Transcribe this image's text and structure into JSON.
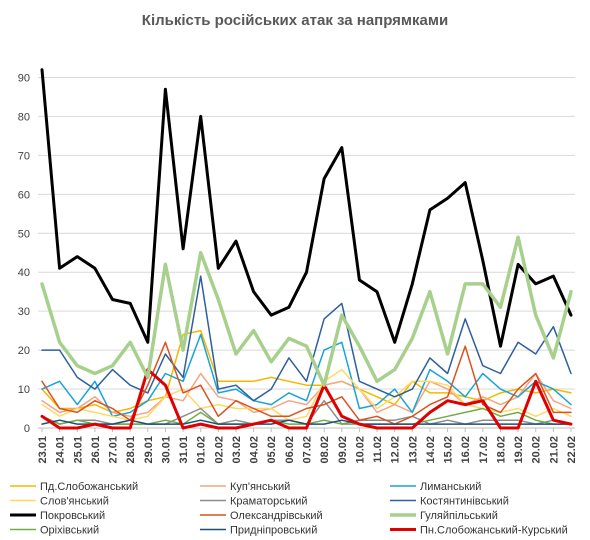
{
  "chart_data": {
    "type": "line",
    "title": "Кількість російських атак за напрямками",
    "ylim": [
      0,
      95
    ],
    "yticks": [
      0,
      10,
      20,
      30,
      40,
      50,
      60,
      70,
      80,
      90
    ],
    "grid": true,
    "legend": "bottom",
    "categories": [
      "23.01",
      "24.01",
      "25.01",
      "26.01",
      "27.01",
      "28.01",
      "29.01",
      "30.01",
      "31.01",
      "01.02",
      "02.02",
      "03.02",
      "04.02",
      "05.02",
      "06.02",
      "07.02",
      "08.02",
      "09.02",
      "10.02",
      "11.02",
      "12.02",
      "13.02",
      "14.02",
      "15.02",
      "16.02",
      "17.02",
      "18.02",
      "19.02",
      "20.02",
      "21.02",
      "22.02"
    ],
    "series": [
      {
        "name": "Пд.Слобожанський",
        "color": "#f5b800",
        "width": 1.5,
        "values": [
          10,
          5,
          5,
          6,
          4,
          5,
          7,
          8,
          24,
          25,
          12,
          12,
          12,
          13,
          12,
          11,
          11,
          12,
          10,
          8,
          6,
          12,
          9,
          9,
          8,
          7,
          9,
          10,
          9,
          10,
          9
        ]
      },
      {
        "name": "Куп'янський",
        "color": "#f4a582",
        "width": 1.5,
        "values": [
          7,
          4,
          5,
          8,
          4,
          3,
          4,
          8,
          7,
          14,
          8,
          7,
          4,
          5,
          7,
          6,
          11,
          12,
          10,
          4,
          6,
          4,
          12,
          10,
          6,
          8,
          6,
          8,
          14,
          7,
          5
        ]
      },
      {
        "name": "Лиманський",
        "color": "#1aa3d9",
        "width": 1.5,
        "values": [
          10,
          12,
          6,
          12,
          3,
          4,
          7,
          14,
          12,
          24,
          9,
          10,
          7,
          6,
          9,
          7,
          20,
          22,
          5,
          6,
          10,
          4,
          15,
          12,
          8,
          14,
          10,
          8,
          12,
          10,
          6
        ]
      },
      {
        "name": "Слов'янський",
        "color": "#ffd966",
        "width": 1.5,
        "values": [
          6,
          3,
          5,
          4,
          3,
          2,
          3,
          8,
          10,
          5,
          6,
          5,
          5,
          5,
          2,
          3,
          12,
          15,
          10,
          5,
          8,
          12,
          12,
          11,
          6,
          5,
          4,
          5,
          3,
          5,
          3
        ]
      },
      {
        "name": "Краматорський",
        "color": "#8c8c8c",
        "width": 1.5,
        "values": [
          3,
          1,
          2,
          2,
          1,
          1,
          1,
          1,
          3,
          5,
          1,
          2,
          1,
          2,
          2,
          1,
          7,
          1,
          2,
          2,
          2,
          3,
          1,
          2,
          1,
          2,
          2,
          2,
          1,
          2,
          1
        ]
      },
      {
        "name": "Костянтинівський",
        "color": "#2e5f9e",
        "width": 1.5,
        "values": [
          20,
          20,
          13,
          10,
          15,
          11,
          9,
          19,
          13,
          39,
          10,
          11,
          7,
          10,
          18,
          12,
          28,
          32,
          12,
          10,
          8,
          10,
          18,
          14,
          28,
          16,
          14,
          22,
          19,
          26,
          14
        ]
      },
      {
        "name": "Покровський",
        "color": "#000000",
        "width": 3,
        "values": [
          92,
          41,
          44,
          41,
          33,
          32,
          22,
          87,
          46,
          80,
          41,
          48,
          35,
          29,
          31,
          40,
          64,
          72,
          38,
          35,
          22,
          37,
          56,
          59,
          63,
          43,
          21,
          42,
          37,
          39,
          29
        ]
      },
      {
        "name": "Олександрівський",
        "color": "#d9531e",
        "width": 1.5,
        "values": [
          12,
          5,
          4,
          7,
          5,
          2,
          11,
          22,
          9,
          11,
          3,
          7,
          5,
          3,
          3,
          5,
          6,
          8,
          2,
          3,
          1,
          3,
          6,
          8,
          21,
          6,
          4,
          10,
          14,
          4,
          4
        ]
      },
      {
        "name": "Гуляйпільський",
        "color": "#a8d08d",
        "width": 3.5,
        "values": [
          37,
          22,
          16,
          14,
          16,
          22,
          13,
          42,
          20,
          45,
          33,
          19,
          25,
          17,
          23,
          21,
          11,
          29,
          21,
          12,
          15,
          23,
          35,
          19,
          37,
          37,
          31,
          49,
          29,
          18,
          35
        ]
      },
      {
        "name": "Оріхівський",
        "color": "#70ad47",
        "width": 1.5,
        "values": [
          3,
          1,
          2,
          1,
          1,
          1,
          1,
          2,
          1,
          4,
          1,
          1,
          1,
          2,
          1,
          1,
          2,
          1,
          1,
          1,
          1,
          1,
          2,
          3,
          4,
          5,
          3,
          4,
          2,
          1,
          1
        ]
      },
      {
        "name": "Придніпровський",
        "color": "#1f4e79",
        "width": 1.5,
        "values": [
          1,
          2,
          1,
          1,
          1,
          2,
          1,
          1,
          1,
          2,
          1,
          1,
          1,
          1,
          2,
          1,
          1,
          2,
          1,
          1,
          1,
          1,
          1,
          1,
          1,
          1,
          1,
          1,
          1,
          1,
          1
        ]
      },
      {
        "name": "Пн.Слобожанський-Курський",
        "color": "#e00000",
        "width": 3,
        "values": [
          3,
          0,
          0,
          1,
          0,
          0,
          15,
          11,
          0,
          1,
          0,
          0,
          1,
          2,
          0,
          0,
          11,
          3,
          1,
          0,
          0,
          0,
          4,
          7,
          6,
          7,
          0,
          0,
          12,
          2,
          1
        ]
      }
    ]
  }
}
